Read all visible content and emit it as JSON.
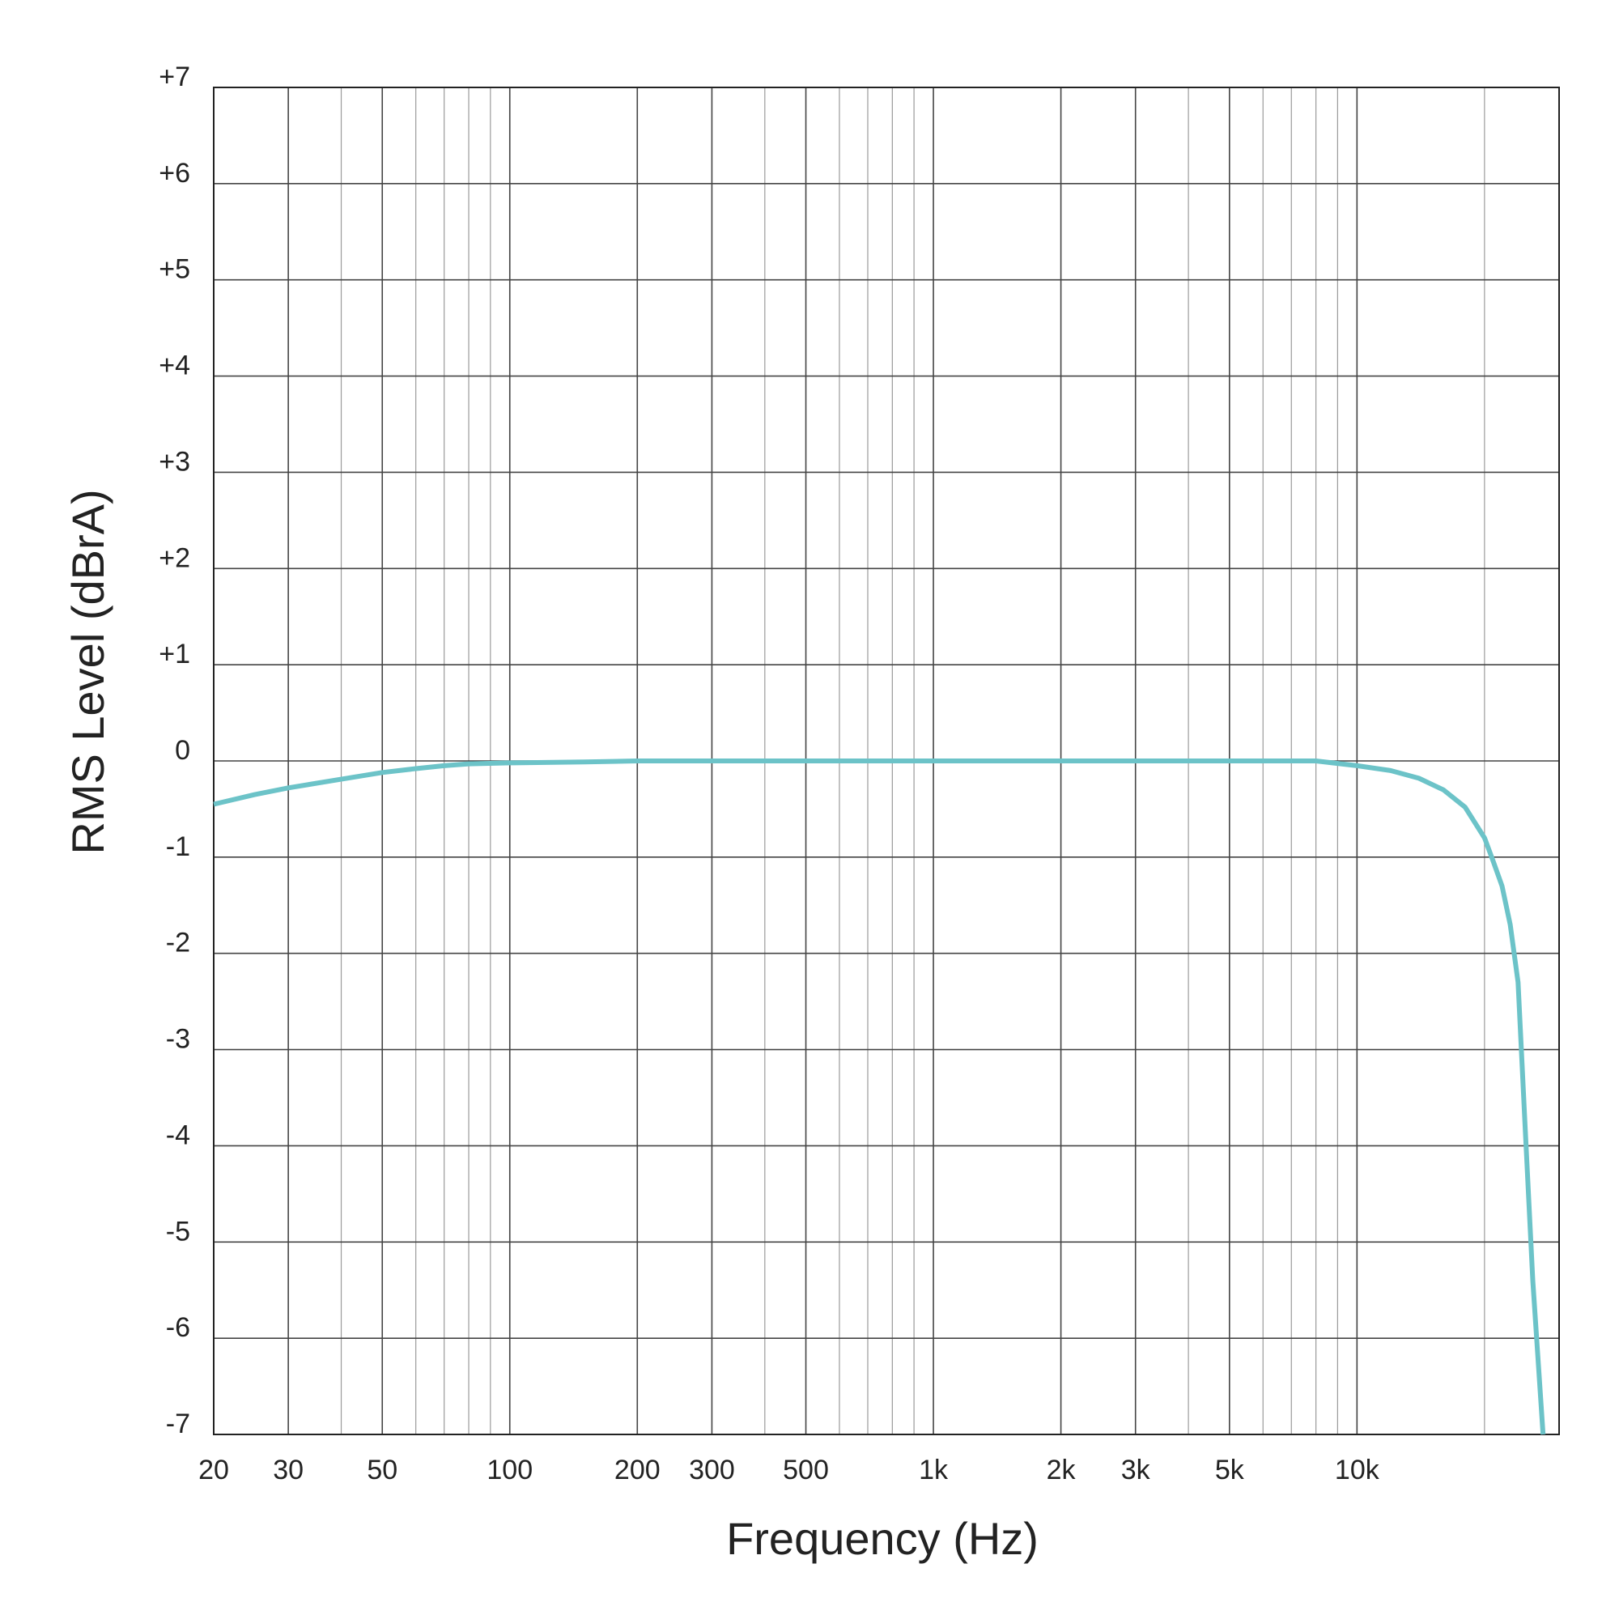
{
  "chart_data": {
    "type": "line",
    "xlabel": "Frequency (Hz)",
    "ylabel": "RMS Level (dBrA)",
    "x_scale": "log",
    "xlim": [
      20,
      30000
    ],
    "ylim": [
      -7,
      7
    ],
    "grid": true,
    "x_tick_values": [
      20,
      30,
      50,
      100,
      200,
      300,
      500,
      1000,
      2000,
      3000,
      5000,
      10000
    ],
    "x_tick_labels": [
      "20",
      "30",
      "50",
      "100",
      "200",
      "300",
      "500",
      "1k",
      "2k",
      "3k",
      "5k",
      "10k"
    ],
    "y_tick_values": [
      7,
      6,
      5,
      4,
      3,
      2,
      1,
      0,
      -1,
      -2,
      -3,
      -4,
      -5,
      -6,
      -7
    ],
    "y_tick_labels": [
      "+7",
      "+6",
      "+5",
      "+4",
      "+3",
      "+2",
      "+1",
      "0",
      "-1",
      "-2",
      "-3",
      "-4",
      "-5",
      "-6",
      "-7"
    ],
    "series": [
      {
        "color": "#6cc3c8",
        "x": [
          20,
          25,
          30,
          40,
          50,
          60,
          70,
          80,
          100,
          150,
          200,
          500,
          1000,
          2000,
          5000,
          8000,
          10000,
          12000,
          14000,
          16000,
          18000,
          20000,
          21000,
          22000,
          23000,
          24000,
          25000,
          26000,
          27500
        ],
        "y": [
          -0.45,
          -0.35,
          -0.28,
          -0.19,
          -0.12,
          -0.08,
          -0.05,
          -0.03,
          -0.02,
          -0.01,
          0,
          0,
          0,
          0,
          0,
          0,
          -0.05,
          -0.1,
          -0.18,
          -0.3,
          -0.48,
          -0.8,
          -1.05,
          -1.3,
          -1.7,
          -2.3,
          -3.9,
          -5.4,
          -7.0
        ]
      }
    ]
  }
}
